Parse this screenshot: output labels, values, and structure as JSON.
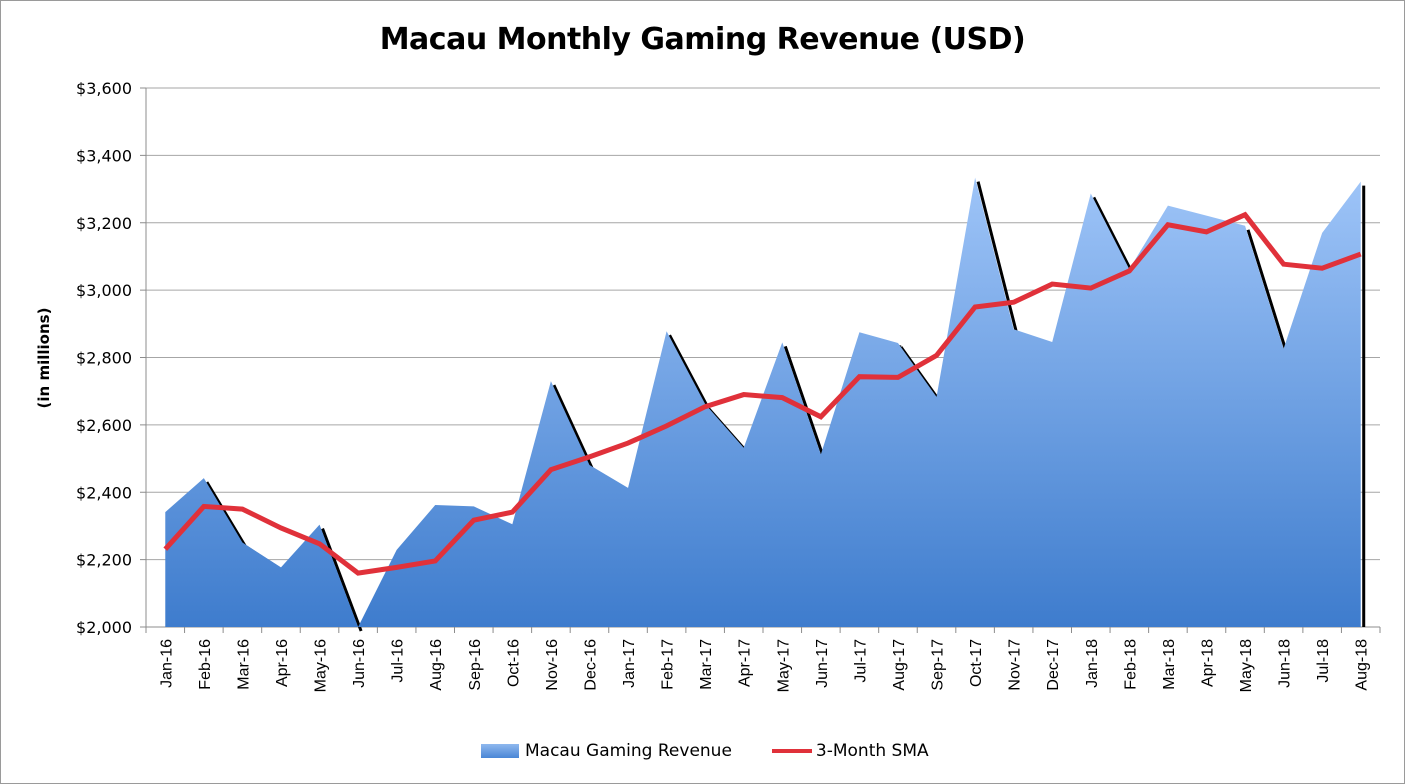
{
  "chart": {
    "title": "Macau Monthly Gaming Revenue (USD)",
    "y_axis_label": "(in millions)",
    "legend": [
      {
        "label": "Macau Gaming Revenue",
        "type": "area",
        "color": "#4a86d6"
      },
      {
        "label": "3-Month SMA",
        "type": "line",
        "color": "#e0313a"
      }
    ]
  },
  "chart_data": {
    "type": "area",
    "title": "Macau Monthly Gaming Revenue (USD)",
    "xlabel": "",
    "ylabel": "(in millions)",
    "ylim": [
      2000,
      3600
    ],
    "yticks": [
      2000,
      2200,
      2400,
      2600,
      2800,
      3000,
      3200,
      3400,
      3600
    ],
    "ytick_labels": [
      "$2,000",
      "$2,200",
      "$2,400",
      "$2,600",
      "$2,800",
      "$3,000",
      "$3,200",
      "$3,400",
      "$3,600"
    ],
    "grid": true,
    "legend_position": "bottom",
    "categories": [
      "Jan-16",
      "Feb-16",
      "Mar-16",
      "Apr-16",
      "May-16",
      "Jun-16",
      "Jul-16",
      "Aug-16",
      "Sep-16",
      "Oct-16",
      "Nov-16",
      "Dec-16",
      "Jan-17",
      "Feb-17",
      "Mar-17",
      "Apr-17",
      "May-17",
      "Jun-17",
      "Jul-17",
      "Aug-17",
      "Sep-17",
      "Oct-17",
      "Nov-17",
      "Dec-17",
      "Jan-18",
      "Feb-18",
      "Mar-18",
      "Apr-18",
      "May-18",
      "Jun-18",
      "Jul-18",
      "Aug-18"
    ],
    "series": [
      {
        "name": "Macau Gaming Revenue",
        "type": "area",
        "color": "#4a86d6",
        "values": [
          2341,
          2442,
          2251,
          2177,
          2304,
          1996,
          2229,
          2362,
          2358,
          2305,
          2730,
          2481,
          2413,
          2878,
          2662,
          2532,
          2845,
          2512,
          2875,
          2843,
          2683,
          3334,
          2884,
          2846,
          3287,
          3062,
          3251,
          3221,
          3191,
          2826,
          3170,
          3322
        ]
      },
      {
        "name": "3-Month SMA",
        "type": "line",
        "color": "#e0313a",
        "values": [
          2231,
          2358,
          2350,
          2294,
          2247,
          2160,
          2177,
          2196,
          2317,
          2341,
          2467,
          2505,
          2546,
          2597,
          2654,
          2690,
          2681,
          2624,
          2743,
          2741,
          2806,
          2950,
          2964,
          3018,
          3006,
          3057,
          3194,
          3173,
          3224,
          3077,
          3065,
          3107
        ]
      }
    ]
  }
}
